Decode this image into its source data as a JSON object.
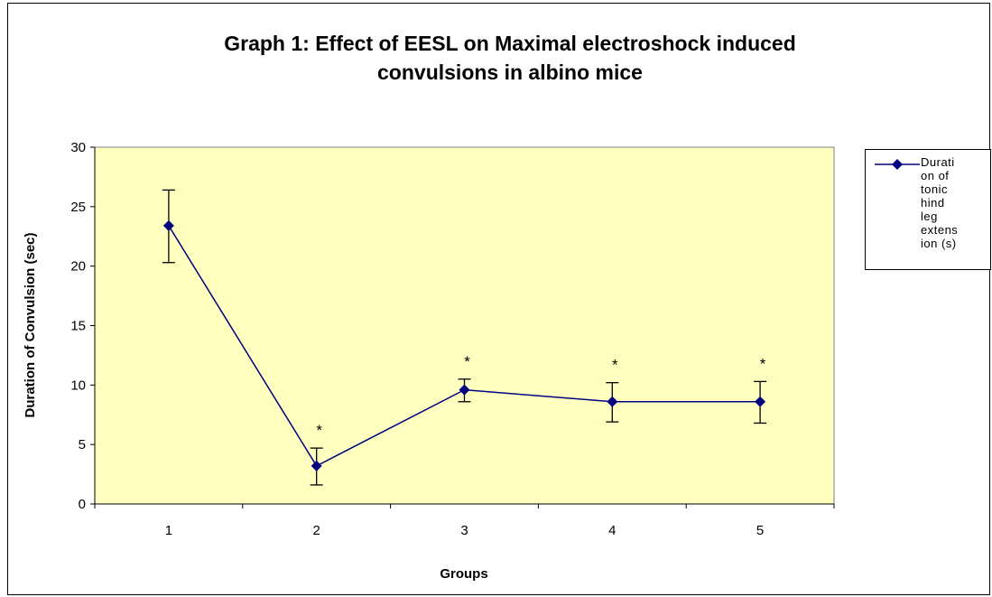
{
  "chart_data": {
    "type": "line",
    "title_lines": [
      "Graph 1: Effect of EESL on Maximal electroshock induced",
      "convulsions in albino mice"
    ],
    "xlabel": "Groups",
    "ylabel": "Duration of Convulsion (sec)",
    "categories": [
      "1",
      "2",
      "3",
      "4",
      "5"
    ],
    "ylim": [
      0,
      30
    ],
    "yticks": [
      0,
      5,
      10,
      15,
      20,
      25,
      30
    ],
    "series": [
      {
        "name": "Duration of tonic hind leg extension (s)",
        "values": [
          23.4,
          3.2,
          9.6,
          8.6,
          8.6
        ],
        "error_upper": [
          26.4,
          4.7,
          10.5,
          10.2,
          10.3
        ],
        "error_lower": [
          20.3,
          1.6,
          8.6,
          6.9,
          6.8
        ],
        "significance": [
          "",
          "*",
          "*",
          "*",
          "*"
        ],
        "color": "#000080"
      }
    ],
    "plot_background": "#ffffc0",
    "grid": false,
    "legend_position": "right"
  }
}
